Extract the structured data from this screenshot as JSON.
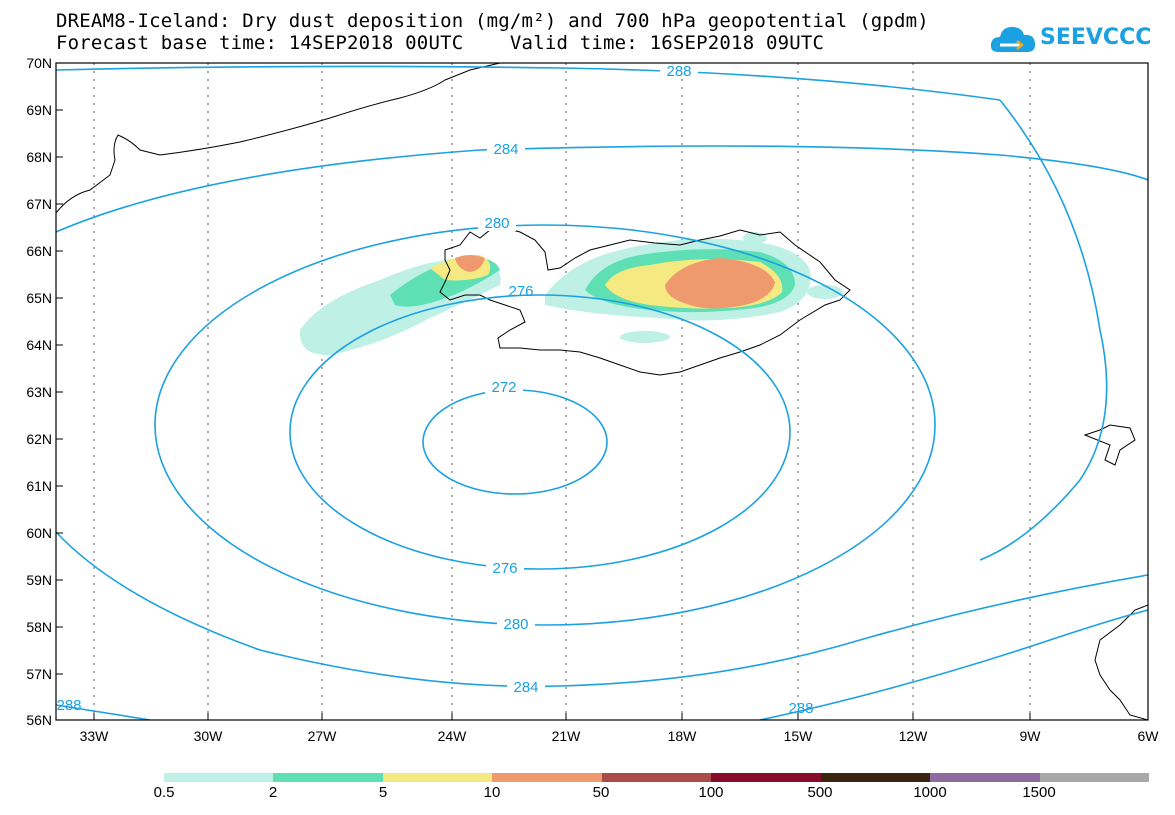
{
  "header": {
    "title_line1": "DREAM8-Iceland: Dry dust deposition (mg/m²) and 700 hPa geopotential (gpdm)",
    "title_line2": "Forecast base time: 14SEP2018 00UTC    Valid time: 16SEP2018 09UTC"
  },
  "logo": {
    "text": "SEEVCCC",
    "icon": "cloud-logo-icon",
    "color": "#1ba1e2"
  },
  "map": {
    "lat_labels": [
      "70N",
      "69N",
      "68N",
      "67N",
      "66N",
      "65N",
      "64N",
      "63N",
      "62N",
      "61N",
      "60N",
      "59N",
      "58N",
      "57N",
      "56N"
    ],
    "lon_labels": [
      "33W",
      "30W",
      "27W",
      "24W",
      "21W",
      "18W",
      "15W",
      "12W",
      "9W",
      "6W"
    ],
    "contour_color": "#1ba1e2",
    "contour_labels": [
      "288",
      "284",
      "280",
      "276",
      "272",
      "276",
      "280",
      "284",
      "288",
      "288"
    ]
  },
  "legend": {
    "colors": [
      "#bff0e6",
      "#5ee0b4",
      "#f5ea82",
      "#ee9a6e",
      "#aa4c48",
      "#8a0a2c",
      "#3a2410",
      "#8c6c9c",
      "#a8a8a8"
    ],
    "labels": [
      "0.5",
      "2",
      "5",
      "10",
      "50",
      "100",
      "500",
      "1000",
      "1500"
    ]
  }
}
